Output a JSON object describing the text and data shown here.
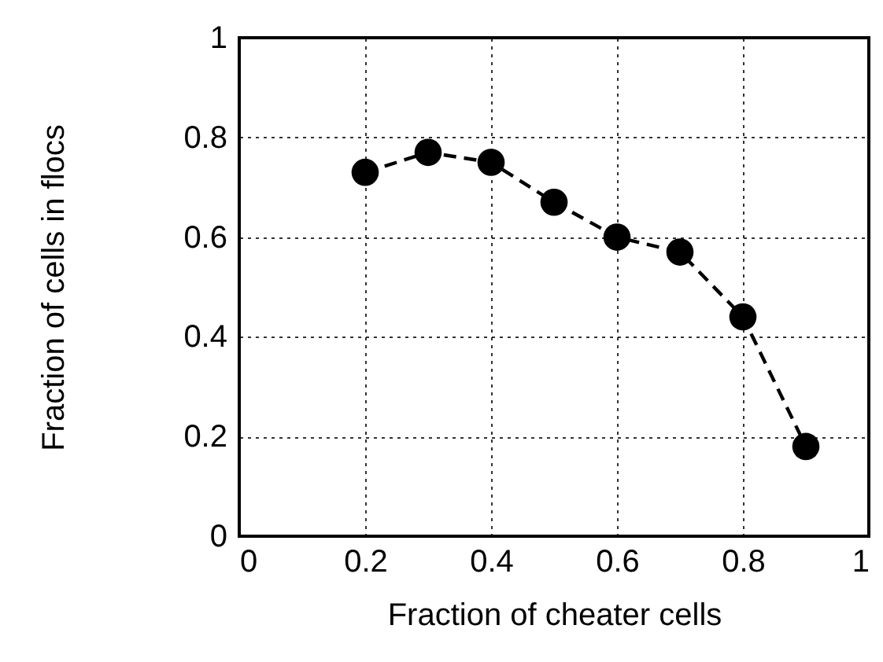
{
  "chart_data": {
    "type": "line",
    "xlabel": "Fraction of cheater cells",
    "ylabel": "Fraction of cells in flocs",
    "x": [
      0.2,
      0.3,
      0.4,
      0.5,
      0.6,
      0.7,
      0.8,
      0.9
    ],
    "series": [
      {
        "color": "#000000",
        "values": [
          0.73,
          0.77,
          0.75,
          0.67,
          0.6,
          0.57,
          0.44,
          0.18
        ]
      }
    ],
    "xlim": [
      0,
      1
    ],
    "xticks": [
      0,
      0.2,
      0.4,
      0.6,
      0.8,
      1
    ],
    "ylim": [
      0,
      1
    ],
    "yticks": [
      0,
      0.2,
      0.4,
      0.6,
      0.8,
      1
    ],
    "grid": true,
    "marker": "circle",
    "line_style": "dashed"
  }
}
